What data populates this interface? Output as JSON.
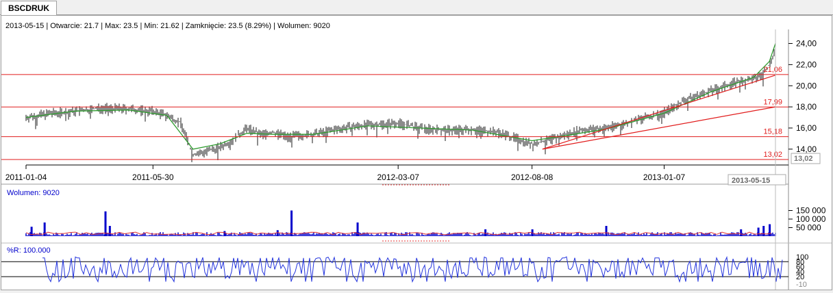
{
  "window": {
    "tab_label": "BSCDRUK"
  },
  "info_line": "2013-05-15 | Otwarcie: 21.7 | Max: 23.5 | Min: 21.62 | Zamknięcie: 23.5 (8.29%)   | Wolumen: 9020",
  "colors": {
    "price": "#1a1a1a",
    "moving_average": "#2e9b2e",
    "support_lines": "#e11b1b",
    "volume_bars": "#0000cc",
    "volume_average": "#e03030",
    "indicator": "#2233dd"
  },
  "chart_data": [
    {
      "type": "line",
      "panel": "price",
      "y_axis": {
        "ylim": [
          12.5,
          25.2
        ],
        "ticks": [
          "24,00",
          "22,00",
          "20,00",
          "18,00",
          "16,00",
          "14,00"
        ],
        "tick_values": [
          24,
          22,
          20,
          18,
          16,
          14
        ],
        "position": "right"
      },
      "x_axis": {
        "xlim": [
          "2011-01-04",
          "2013-05-15"
        ],
        "labels": [
          "2011-01-04",
          "2011-05-30",
          "2012-03-07",
          "2012-08-08",
          "2013-01-07"
        ],
        "cursor_label": "2013-05-15"
      },
      "cursor_value_label": "13,02",
      "series": [
        {
          "style": "ohlc-bars",
          "x": [
            "2011-01-04",
            "2011-02-01",
            "2011-03-01",
            "2011-04-01",
            "2011-05-02",
            "2011-05-30",
            "2011-06-15",
            "2011-07-01",
            "2011-07-15",
            "2011-08-01",
            "2011-08-15",
            "2011-09-01",
            "2011-09-15",
            "2011-10-01",
            "2011-10-15",
            "2011-11-01",
            "2011-12-01",
            "2012-01-01",
            "2012-02-01",
            "2012-03-07",
            "2012-04-01",
            "2012-05-01",
            "2012-06-01",
            "2012-07-01",
            "2012-08-08",
            "2012-08-25",
            "2012-09-10",
            "2012-10-01",
            "2012-11-01",
            "2012-12-01",
            "2013-01-07",
            "2013-02-01",
            "2013-03-01",
            "2013-04-01",
            "2013-04-20",
            "2013-05-01",
            "2013-05-08",
            "2013-05-15"
          ],
          "values": [
            17.0,
            17.4,
            17.6,
            17.9,
            17.8,
            17.6,
            17.2,
            16.5,
            13.5,
            13.8,
            14.2,
            15.0,
            16.0,
            15.4,
            15.6,
            15.2,
            15.4,
            16.0,
            16.3,
            16.5,
            16.0,
            15.8,
            15.9,
            15.6,
            14.5,
            14.8,
            15.2,
            15.8,
            16.0,
            16.6,
            17.5,
            18.7,
            19.5,
            20.4,
            20.6,
            21.2,
            22.0,
            23.5
          ]
        },
        {
          "name": "",
          "style": "moving-average",
          "x": [
            "2011-01-04",
            "2011-03-01",
            "2011-05-02",
            "2011-06-15",
            "2011-07-15",
            "2011-08-15",
            "2011-09-15",
            "2011-10-15",
            "2011-12-01",
            "2012-02-01",
            "2012-04-01",
            "2012-06-01",
            "2012-08-08",
            "2012-09-10",
            "2012-11-01",
            "2013-01-07",
            "2013-03-01",
            "2013-04-20",
            "2013-05-08",
            "2013-05-15"
          ],
          "values": [
            17.0,
            17.6,
            17.7,
            17.2,
            14.0,
            14.5,
            15.5,
            15.4,
            15.4,
            16.2,
            16.0,
            15.8,
            14.8,
            15.2,
            15.9,
            17.4,
            19.4,
            20.8,
            22.3,
            24.0
          ]
        }
      ],
      "horizontal_levels": [
        {
          "value": 21.06,
          "label": "21,06"
        },
        {
          "value": 17.99,
          "label": "17,99"
        },
        {
          "value": 15.18,
          "label": "15,18"
        },
        {
          "value": 13.02,
          "label": "13,02"
        }
      ],
      "trend_lines": [
        {
          "from": [
            "2012-08-20",
            14.0
          ],
          "to": [
            "2013-05-15",
            21.0
          ]
        },
        {
          "from": [
            "2012-08-20",
            14.0
          ],
          "to": [
            "2013-05-15",
            18.0
          ]
        }
      ]
    },
    {
      "type": "bar",
      "panel": "volume",
      "label": "Wolumen: 9020",
      "y_axis": {
        "ylim": [
          0,
          160000
        ],
        "ticks": [
          "150 000",
          "100 000",
          "50 000"
        ],
        "tick_values": [
          150000,
          100000,
          50000
        ]
      },
      "spikes": [
        {
          "x": "2011-01-10",
          "value": 55000
        },
        {
          "x": "2011-01-25",
          "value": 80000
        },
        {
          "x": "2011-04-05",
          "value": 145000
        },
        {
          "x": "2011-04-10",
          "value": 60000
        },
        {
          "x": "2011-08-20",
          "value": 30000
        },
        {
          "x": "2011-10-20",
          "value": 35000
        },
        {
          "x": "2011-11-05",
          "value": 150000
        },
        {
          "x": "2012-01-20",
          "value": 80000
        },
        {
          "x": "2012-06-15",
          "value": 40000
        },
        {
          "x": "2012-08-08",
          "value": 40000
        },
        {
          "x": "2012-11-01",
          "value": 60000
        },
        {
          "x": "2013-04-05",
          "value": 40000
        },
        {
          "x": "2013-04-25",
          "value": 50000
        },
        {
          "x": "2013-05-01",
          "value": 60000
        },
        {
          "x": "2013-05-08",
          "value": 70000
        }
      ]
    },
    {
      "type": "line",
      "panel": "indicator",
      "label": "%R: 100.000",
      "y_axis": {
        "ylim": [
          -10,
          100
        ],
        "ticks": [
          "100",
          "80",
          "60",
          "40",
          "20",
          "-10"
        ],
        "tick_values": [
          100,
          80,
          60,
          40,
          20,
          -10
        ]
      },
      "reference_levels": [
        80,
        20
      ]
    }
  ]
}
